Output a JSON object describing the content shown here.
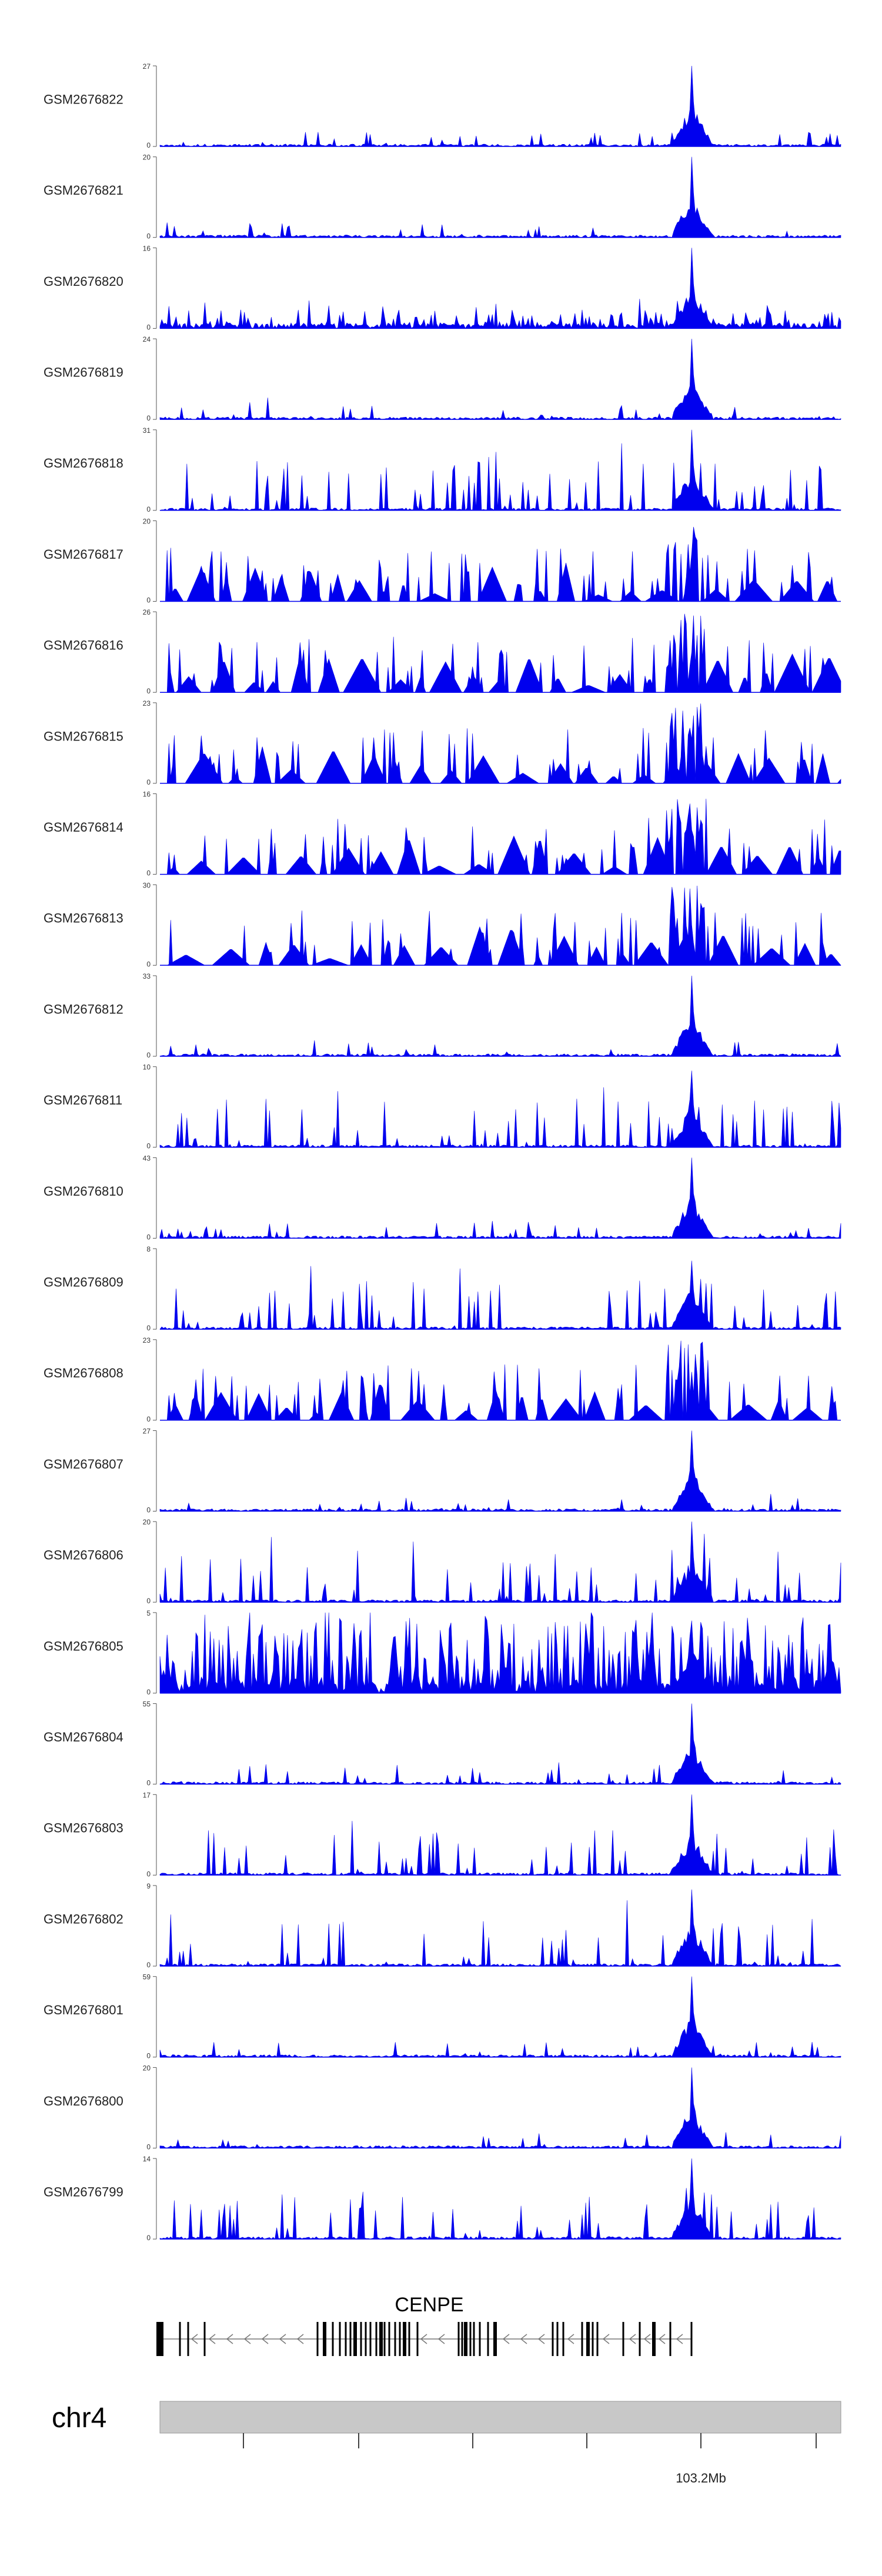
{
  "chart_data": {
    "type": "area",
    "colors": {
      "signal": "#0000ee",
      "axis": "#555555",
      "exon": "#000000",
      "intron": "#777777",
      "ideogram": "#c8c8c8"
    },
    "tracks": [
      {
        "name": "GSM2676822",
        "ymax": "27",
        "ymin": "0",
        "pattern": "sparse",
        "peak_height": 1.0
      },
      {
        "name": "GSM2676821",
        "ymax": "20",
        "ymin": "0",
        "pattern": "sparse",
        "peak_height": 1.0
      },
      {
        "name": "GSM2676820",
        "ymax": "16",
        "ymin": "0",
        "pattern": "dense",
        "peak_height": 1.0
      },
      {
        "name": "GSM2676819",
        "ymax": "24",
        "ymin": "0",
        "pattern": "sparse",
        "peak_height": 1.0
      },
      {
        "name": "GSM2676818",
        "ymax": "31",
        "ymin": "0",
        "pattern": "medium",
        "peak_height": 1.0
      },
      {
        "name": "GSM2676817",
        "ymax": "20",
        "ymin": "0",
        "pattern": "wide",
        "peak_height": 0.6
      },
      {
        "name": "GSM2676816",
        "ymax": "26",
        "ymin": "0",
        "pattern": "wide",
        "peak_height": 0.5
      },
      {
        "name": "GSM2676815",
        "ymax": "23",
        "ymin": "0",
        "pattern": "wide",
        "peak_height": 0.55
      },
      {
        "name": "GSM2676814",
        "ymax": "16",
        "ymin": "0",
        "pattern": "wide",
        "peak_height": 0.55
      },
      {
        "name": "GSM2676813",
        "ymax": "30",
        "ymin": "0",
        "pattern": "wide",
        "peak_height": 0.5
      },
      {
        "name": "GSM2676812",
        "ymax": "33",
        "ymin": "0",
        "pattern": "sparse",
        "peak_height": 1.0
      },
      {
        "name": "GSM2676811",
        "ymax": "10",
        "ymin": "0",
        "pattern": "medium",
        "peak_height": 0.95
      },
      {
        "name": "GSM2676810",
        "ymax": "43",
        "ymin": "0",
        "pattern": "sparse",
        "peak_height": 1.0
      },
      {
        "name": "GSM2676809",
        "ymax": "8",
        "ymin": "0",
        "pattern": "medium",
        "peak_height": 0.85
      },
      {
        "name": "GSM2676808",
        "ymax": "23",
        "ymin": "0",
        "pattern": "wide",
        "peak_height": 0.6
      },
      {
        "name": "GSM2676807",
        "ymax": "27",
        "ymin": "0",
        "pattern": "sparse",
        "peak_height": 1.0
      },
      {
        "name": "GSM2676806",
        "ymax": "20",
        "ymin": "0",
        "pattern": "medium",
        "peak_height": 1.0
      },
      {
        "name": "GSM2676805",
        "ymax": "5",
        "ymin": "0",
        "pattern": "noise",
        "peak_height": 0.9
      },
      {
        "name": "GSM2676804",
        "ymax": "55",
        "ymin": "0",
        "pattern": "sparse",
        "peak_height": 1.0
      },
      {
        "name": "GSM2676803",
        "ymax": "17",
        "ymin": "0",
        "pattern": "medium",
        "peak_height": 1.0
      },
      {
        "name": "GSM2676802",
        "ymax": "9",
        "ymin": "0",
        "pattern": "medium",
        "peak_height": 0.95
      },
      {
        "name": "GSM2676801",
        "ymax": "59",
        "ymin": "0",
        "pattern": "sparse",
        "peak_height": 1.0
      },
      {
        "name": "GSM2676800",
        "ymax": "20",
        "ymin": "0",
        "pattern": "sparse",
        "peak_height": 1.0
      },
      {
        "name": "GSM2676799",
        "ymax": "14",
        "ymin": "0",
        "pattern": "medium",
        "peak_height": 1.0
      }
    ],
    "gene": {
      "name": "CENPE",
      "strand": "-"
    },
    "chromosome": "chr4",
    "ticks": [
      "",
      "",
      "",
      "",
      "103.2Mb",
      ""
    ]
  }
}
